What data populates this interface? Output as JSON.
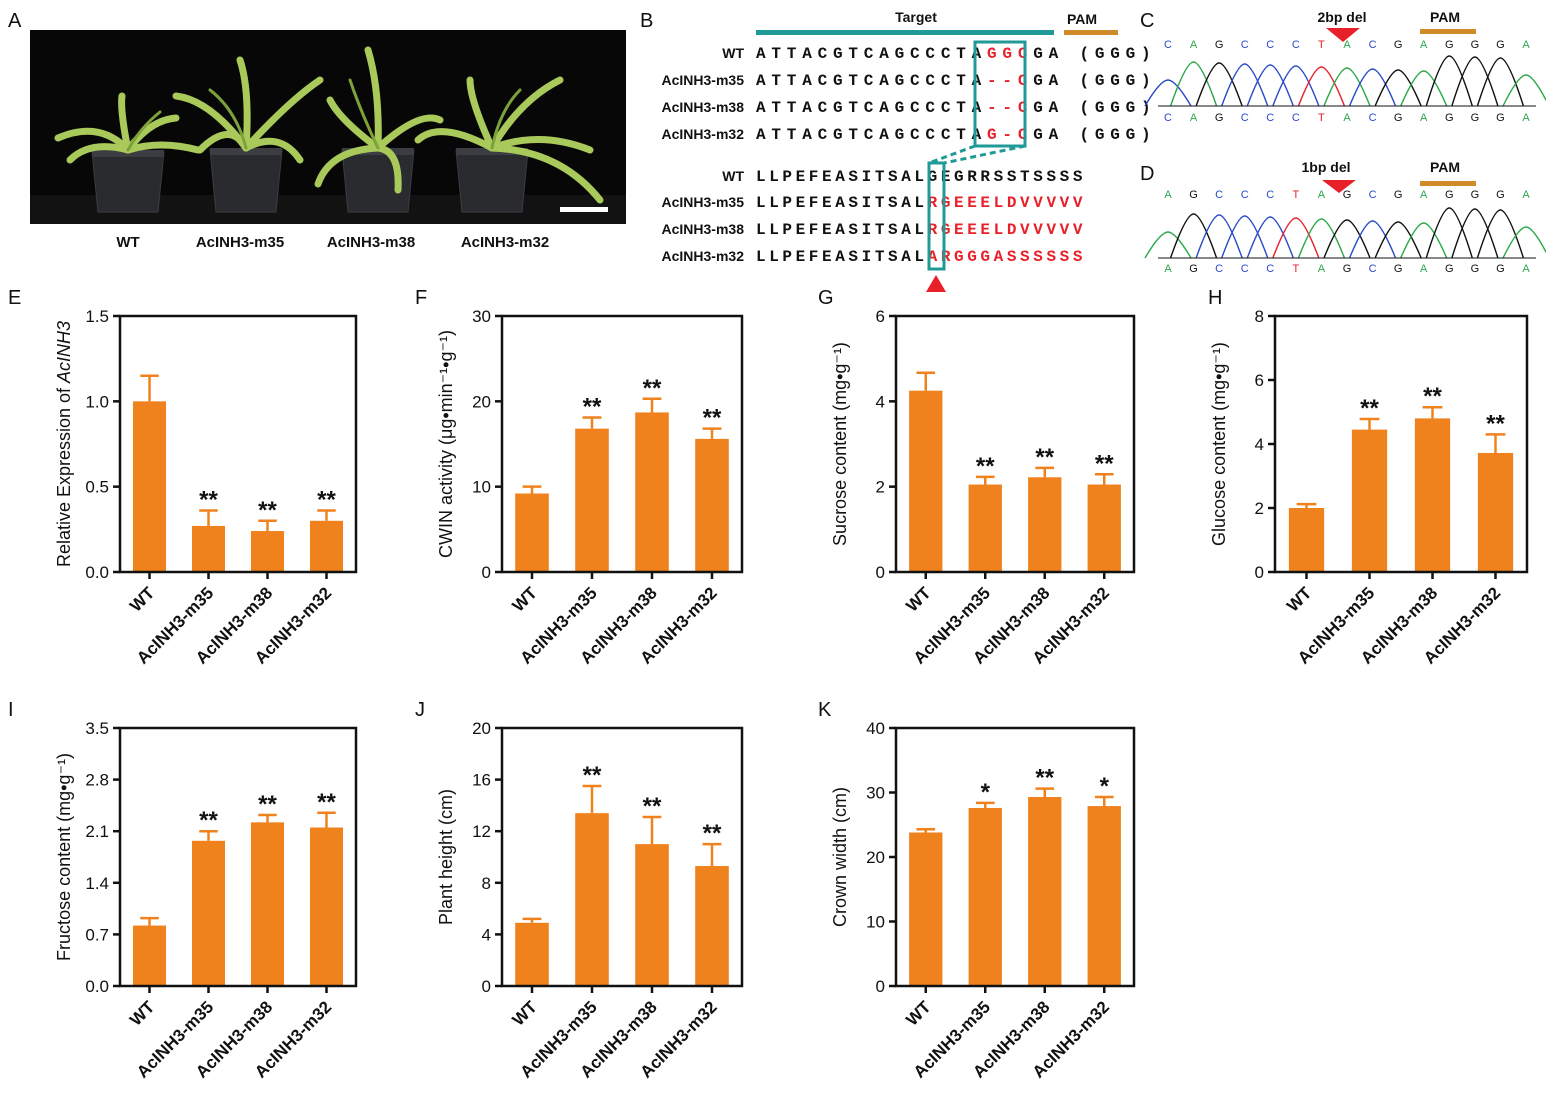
{
  "colors": {
    "bar": "#F0821E",
    "teal": "#1F9A96",
    "pam": "#D08A2A",
    "red": "#E8202A",
    "base_A": "#2BA84A",
    "base_C": "#2A4BC8",
    "base_G": "#111111",
    "base_T": "#E8202A"
  },
  "panel_labels": [
    "A",
    "B",
    "C",
    "D",
    "E",
    "F",
    "G",
    "H",
    "I",
    "J",
    "K"
  ],
  "panel_a": {
    "labels": [
      "WT",
      "AcINH3-m35",
      "AcINH3-m38",
      "AcINH3-m32"
    ]
  },
  "panel_b": {
    "target_label": "Target",
    "pam_label": "PAM",
    "dna_rows": [
      {
        "name": "WT",
        "prefix": "ATTACGTCAGCCCTA",
        "edit": "GGC",
        "suffix": "GA (GGG)"
      },
      {
        "name": "AcINH3-m35",
        "prefix": "ATTACGTCAGCCCTA",
        "edit": "--C",
        "suffix": "GA (GGG)"
      },
      {
        "name": "AcINH3-m38",
        "prefix": "ATTACGTCAGCCCTA",
        "edit": "--C",
        "suffix": "GA (GGG)"
      },
      {
        "name": "AcINH3-m32",
        "prefix": "ATTACGTCAGCCCTA",
        "edit": "G-C",
        "suffix": "GA (GGG)"
      }
    ],
    "protein_rows": [
      {
        "name": "WT",
        "prefix": "LLPEFEASITSAL",
        "mut": "",
        "rest": "GEGRRSSTSSSS"
      },
      {
        "name": "AcINH3-m35",
        "prefix": "LLPEFEASITSAL",
        "mut": "RGEEELDVVVVV",
        "rest": ""
      },
      {
        "name": "AcINH3-m38",
        "prefix": "LLPEFEASITSAL",
        "mut": "RGEEELDVVVVV",
        "rest": ""
      },
      {
        "name": "AcINH3-m32",
        "prefix": "LLPEFEASITSAL",
        "mut": "ARGGGASSSSSS",
        "rest": ""
      }
    ]
  },
  "panel_c": {
    "del_label": "2bp del",
    "pam_label": "PAM",
    "bases": [
      "C",
      "A",
      "G",
      "C",
      "C",
      "C",
      "T",
      "A",
      "C",
      "G",
      "A",
      "G",
      "G",
      "G",
      "A"
    ]
  },
  "panel_d": {
    "del_label": "1bp del",
    "pam_label": "PAM",
    "bases": [
      "A",
      "G",
      "C",
      "C",
      "C",
      "T",
      "A",
      "G",
      "C",
      "G",
      "A",
      "G",
      "G",
      "G",
      "A"
    ]
  },
  "chart_data": [
    {
      "id": "E",
      "type": "bar",
      "categories": [
        "WT",
        "AcINH3-m35",
        "AcINH3-m38",
        "AcINH3-m32"
      ],
      "values": [
        1.0,
        0.27,
        0.24,
        0.3
      ],
      "errors": [
        0.15,
        0.09,
        0.06,
        0.06
      ],
      "significance": [
        "",
        "**",
        "**",
        "**"
      ],
      "ylabel": "Relative Expression of ",
      "ylabel_italic": "AcINH3",
      "ylim": [
        0,
        1.5
      ],
      "yticks": [
        "0.0",
        "0.5",
        "1.0",
        "1.5"
      ]
    },
    {
      "id": "F",
      "type": "bar",
      "categories": [
        "WT",
        "AcINH3-m35",
        "AcINH3-m38",
        "AcINH3-m32"
      ],
      "values": [
        9.2,
        16.8,
        18.7,
        15.6
      ],
      "errors": [
        0.8,
        1.3,
        1.6,
        1.2
      ],
      "significance": [
        "",
        "**",
        "**",
        "**"
      ],
      "ylabel": "CWIN activity (μg•min⁻¹•g⁻¹)",
      "ylim": [
        0,
        30
      ],
      "yticks": [
        "0",
        "10",
        "20",
        "30"
      ]
    },
    {
      "id": "G",
      "type": "bar",
      "categories": [
        "WT",
        "AcINH3-m35",
        "AcINH3-m38",
        "AcINH3-m32"
      ],
      "values": [
        4.25,
        2.05,
        2.22,
        2.05
      ],
      "errors": [
        0.42,
        0.18,
        0.22,
        0.24
      ],
      "significance": [
        "",
        "**",
        "**",
        "**"
      ],
      "ylabel": "Sucrose content (mg•g⁻¹)",
      "ylim": [
        0,
        6
      ],
      "yticks": [
        "0",
        "2",
        "4",
        "6"
      ]
    },
    {
      "id": "H",
      "type": "bar",
      "categories": [
        "WT",
        "AcINH3-m35",
        "AcINH3-m38",
        "AcINH3-m32"
      ],
      "values": [
        2.0,
        4.45,
        4.8,
        3.72
      ],
      "errors": [
        0.12,
        0.33,
        0.35,
        0.58
      ],
      "significance": [
        "",
        "**",
        "**",
        "**"
      ],
      "ylabel": "Glucose content (mg•g⁻¹)",
      "ylim": [
        0,
        8
      ],
      "yticks": [
        "0",
        "2",
        "4",
        "6",
        "8"
      ]
    },
    {
      "id": "I",
      "type": "bar",
      "categories": [
        "WT",
        "AcINH3-m35",
        "AcINH3-m38",
        "AcINH3-m32"
      ],
      "values": [
        0.82,
        1.97,
        2.22,
        2.15
      ],
      "errors": [
        0.1,
        0.13,
        0.1,
        0.2
      ],
      "significance": [
        "",
        "**",
        "**",
        "**"
      ],
      "ylabel": "Fructose content (mg•g⁻¹)",
      "ylim": [
        0,
        3.5
      ],
      "yticks": [
        "0.0",
        "0.7",
        "1.4",
        "2.1",
        "2.8",
        "3.5"
      ]
    },
    {
      "id": "J",
      "type": "bar",
      "categories": [
        "WT",
        "AcINH3-m35",
        "AcINH3-m38",
        "AcINH3-m32"
      ],
      "values": [
        4.9,
        13.4,
        11.0,
        9.3
      ],
      "errors": [
        0.3,
        2.1,
        2.1,
        1.7
      ],
      "significance": [
        "",
        "**",
        "**",
        "**"
      ],
      "ylabel": "Plant height (cm)",
      "ylim": [
        0,
        20
      ],
      "yticks": [
        "0",
        "4",
        "8",
        "12",
        "16",
        "20"
      ]
    },
    {
      "id": "K",
      "type": "bar",
      "categories": [
        "WT",
        "AcINH3-m35",
        "AcINH3-m38",
        "AcINH3-m32"
      ],
      "values": [
        23.8,
        27.6,
        29.3,
        27.9
      ],
      "errors": [
        0.5,
        0.8,
        1.3,
        1.4
      ],
      "significance": [
        "",
        "*",
        "**",
        "*"
      ],
      "ylabel": "Crown width (cm)",
      "ylim": [
        0,
        40
      ],
      "yticks": [
        "0",
        "10",
        "20",
        "30",
        "40"
      ]
    }
  ]
}
